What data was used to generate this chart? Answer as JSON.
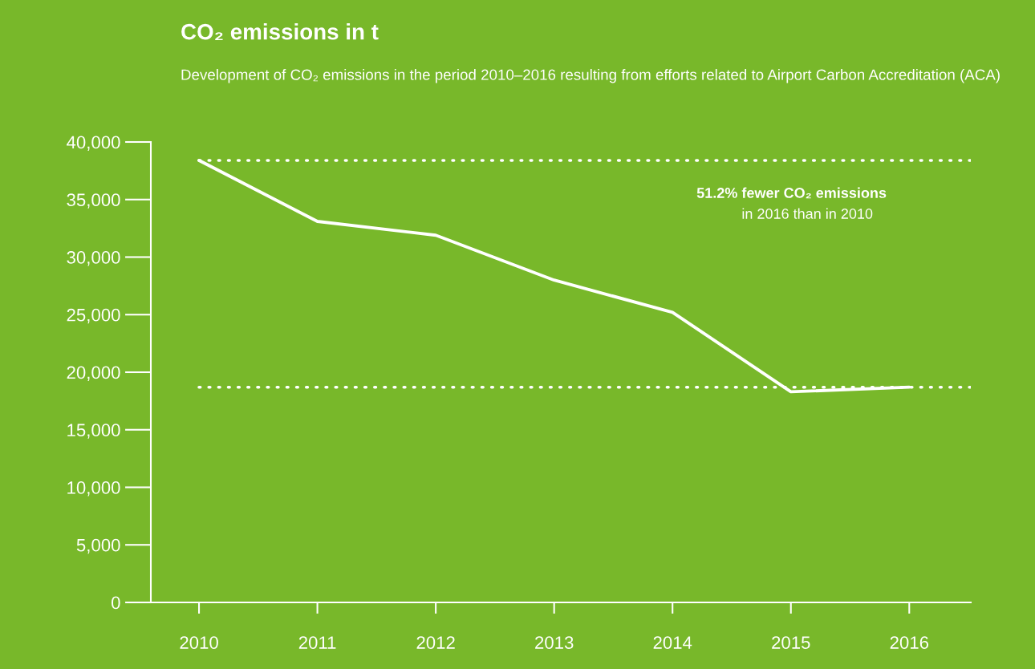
{
  "chart_data": {
    "type": "line",
    "title": "CO₂ emissions in t",
    "subtitle": "Development of CO₂ emissions in the period 2010–2016 resulting from efforts related to Airport Carbon Accreditation (ACA)",
    "categories": [
      "2010",
      "2011",
      "2012",
      "2013",
      "2014",
      "2015",
      "2016"
    ],
    "series": [
      {
        "color": "#ffffff",
        "values": [
          38400,
          33100,
          31900,
          28000,
          25200,
          18300,
          18700
        ]
      }
    ],
    "ylim": [
      0,
      40000
    ],
    "yticks": [
      {
        "value": 0,
        "label": "0"
      },
      {
        "value": 5000,
        "label": "5,000"
      },
      {
        "value": 10000,
        "label": "10,000"
      },
      {
        "value": 15000,
        "label": "15,000"
      },
      {
        "value": 20000,
        "label": "20,000"
      },
      {
        "value": 25000,
        "label": "25,000"
      },
      {
        "value": 30000,
        "label": "30,000"
      },
      {
        "value": 35000,
        "label": "35,000"
      },
      {
        "value": 40000,
        "label": "40,000"
      }
    ],
    "ref_lines": [
      {
        "axis": "y",
        "value": 38400,
        "color": "#ffffff",
        "line_style": "dotted"
      },
      {
        "axis": "y",
        "value": 18700,
        "color": "#ffffff",
        "line_style": "dotted"
      }
    ],
    "annotations": [
      "51.2% fewer CO₂ emissions",
      "in 2016 than in 2010"
    ],
    "grid": false,
    "line_style": "solid",
    "marker": "none"
  }
}
